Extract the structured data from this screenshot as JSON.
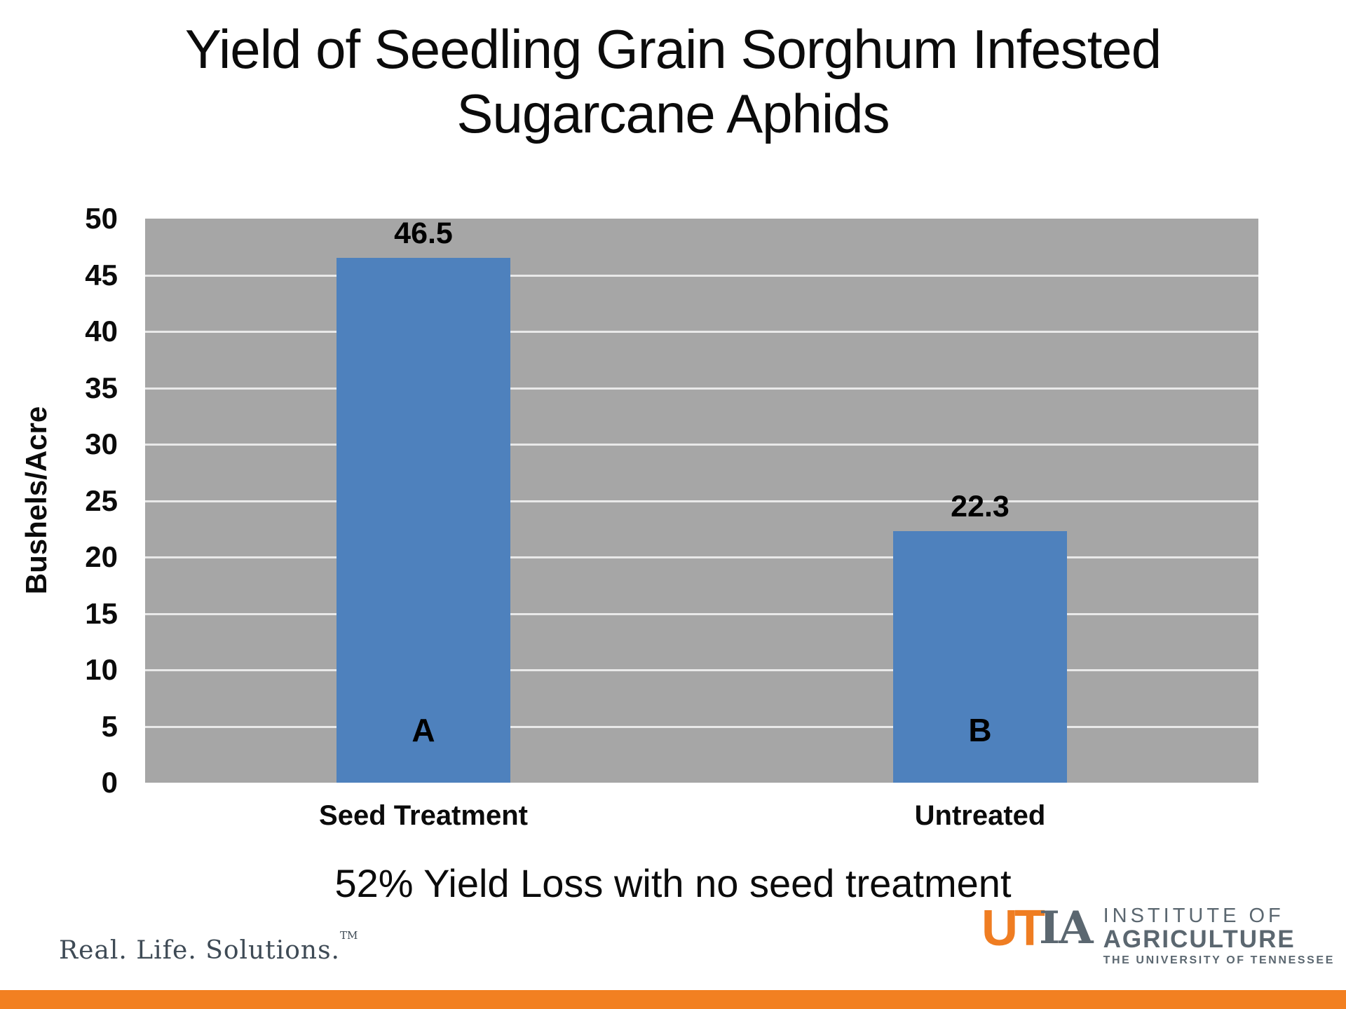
{
  "slide": {
    "title_line1": "Yield of Seedling Grain Sorghum Infested",
    "title_line2": "Sugarcane Aphids",
    "caption": "52% Yield Loss with no seed treatment",
    "footer_tagline": "Real. Life. Solutions.",
    "footer_trademark": "TM"
  },
  "logo": {
    "ut": "UT",
    "ia": "IA",
    "line1": "INSTITUTE OF",
    "line2": "AGRICULTURE",
    "line3": "THE UNIVERSITY OF TENNESSEE",
    "orange": "#EF7D22",
    "gray": "#5B6770"
  },
  "colors": {
    "accent_bar_bottom": "#F28021",
    "tagline_text": "#3E4A55",
    "text": "#0B0B0B"
  },
  "chart_data": {
    "type": "bar",
    "title": "Yield of Seedling Grain Sorghum Infested Sugarcane Aphids",
    "categories": [
      "Seed Treatment",
      "Untreated"
    ],
    "values": [
      46.5,
      22.3
    ],
    "data_labels": [
      "46.5",
      "22.3"
    ],
    "bar_letters": [
      "A",
      "B"
    ],
    "xlabel": "",
    "ylabel": "Bushels/Acre",
    "ylim": [
      0,
      50
    ],
    "ytick_step": 5,
    "grid": true,
    "legend": "none",
    "bar_color": "#4E81BD",
    "plot_bg": "#A6A6A6",
    "grid_color": "#E9E9E9"
  }
}
